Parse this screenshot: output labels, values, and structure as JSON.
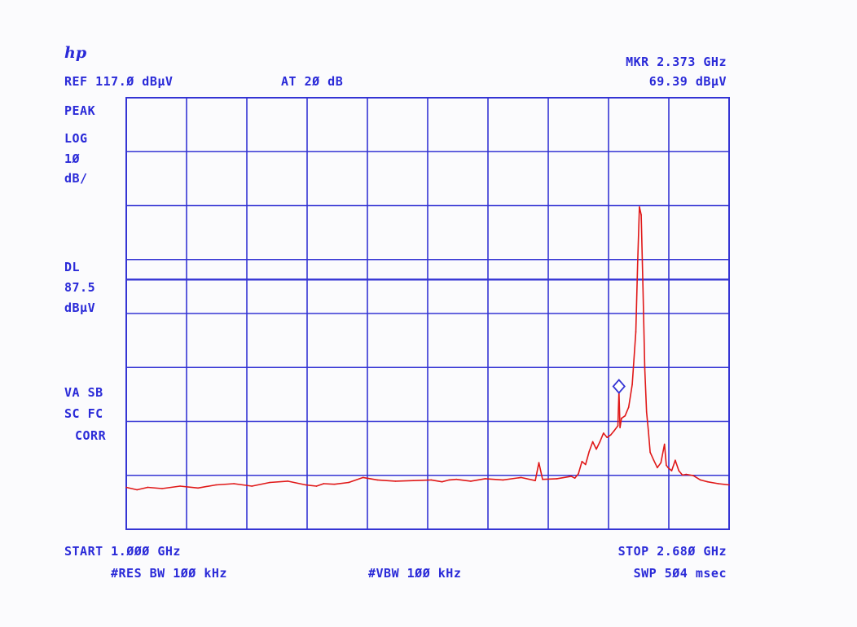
{
  "logo": "hp",
  "header": {
    "ref": "REF 117.Ø dBµV",
    "atten": "AT 2Ø dB",
    "marker_freq": "MKR 2.373 GHz",
    "marker_level": "69.39 dBµV"
  },
  "left_panel": {
    "detector": "PEAK",
    "scale_mode": "LOG",
    "scale_value": "1Ø",
    "scale_unit": "dB/",
    "display_line_label": "DL",
    "display_line_value": "87.5",
    "display_line_unit": "dBµV",
    "flags_1": "VA SB",
    "flags_2": "SC FC",
    "flags_3": "CORR"
  },
  "footer": {
    "start": "START 1.ØØØ GHz",
    "stop": "STOP 2.68Ø GHz",
    "rbw": "#RES BW 1ØØ kHz",
    "vbw": "#VBW 1ØØ kHz",
    "sweep": "SWP 5Ø4 msec"
  },
  "colors": {
    "grid": "#3434d4",
    "trace": "#e01818",
    "text": "#2a2ad8"
  },
  "chart_data": {
    "type": "line",
    "title": "",
    "xlabel": "",
    "ylabel": "",
    "x_unit": "GHz",
    "y_unit": "dBµV",
    "xlim": [
      1.0,
      2.68
    ],
    "ylim": [
      47,
      117
    ],
    "grid": true,
    "display_line": 87.5,
    "marker": {
      "x": 2.373,
      "y": 69.39
    },
    "series": [
      {
        "x": [
          1.0,
          1.03,
          1.06,
          1.1,
          1.15,
          1.2,
          1.25,
          1.3,
          1.35,
          1.4,
          1.45,
          1.5,
          1.53,
          1.55,
          1.58,
          1.62,
          1.66,
          1.7,
          1.75,
          1.8,
          1.85,
          1.88,
          1.9,
          1.92,
          1.96,
          2.0,
          2.05,
          2.1,
          2.14,
          2.15,
          2.16,
          2.2,
          2.24,
          2.25,
          2.26,
          2.27,
          2.28,
          2.29,
          2.3,
          2.31,
          2.32,
          2.33,
          2.34,
          2.35,
          2.36,
          2.37,
          2.373,
          2.376,
          2.38,
          2.39,
          2.4,
          2.41,
          2.42,
          2.425,
          2.43,
          2.435,
          2.44,
          2.445,
          2.45,
          2.455,
          2.46,
          2.47,
          2.48,
          2.49,
          2.5,
          2.505,
          2.51,
          2.52,
          2.53,
          2.54,
          2.55,
          2.56,
          2.58,
          2.6,
          2.62,
          2.65,
          2.68
        ],
        "y": [
          53.8,
          53.4,
          53.8,
          53.6,
          54.0,
          53.7,
          54.2,
          54.4,
          54.0,
          54.6,
          54.8,
          54.2,
          54.0,
          54.4,
          54.3,
          54.6,
          55.4,
          55.0,
          54.8,
          54.9,
          55.0,
          54.7,
          55.0,
          55.1,
          54.8,
          55.2,
          55.0,
          55.4,
          54.9,
          57.8,
          55.1,
          55.2,
          55.6,
          55.3,
          56.0,
          58.0,
          57.5,
          59.6,
          61.2,
          60.0,
          61.2,
          62.6,
          61.9,
          62.3,
          63.0,
          63.8,
          69.39,
          63.5,
          65.0,
          65.4,
          66.8,
          70.5,
          79.0,
          90.0,
          99.3,
          98.0,
          86.0,
          73.0,
          66.0,
          63.0,
          59.5,
          58.2,
          57.0,
          57.8,
          60.8,
          57.4,
          57.0,
          56.5,
          58.2,
          56.5,
          55.8,
          55.9,
          55.7,
          55.0,
          54.7,
          54.4,
          54.2
        ]
      }
    ]
  }
}
